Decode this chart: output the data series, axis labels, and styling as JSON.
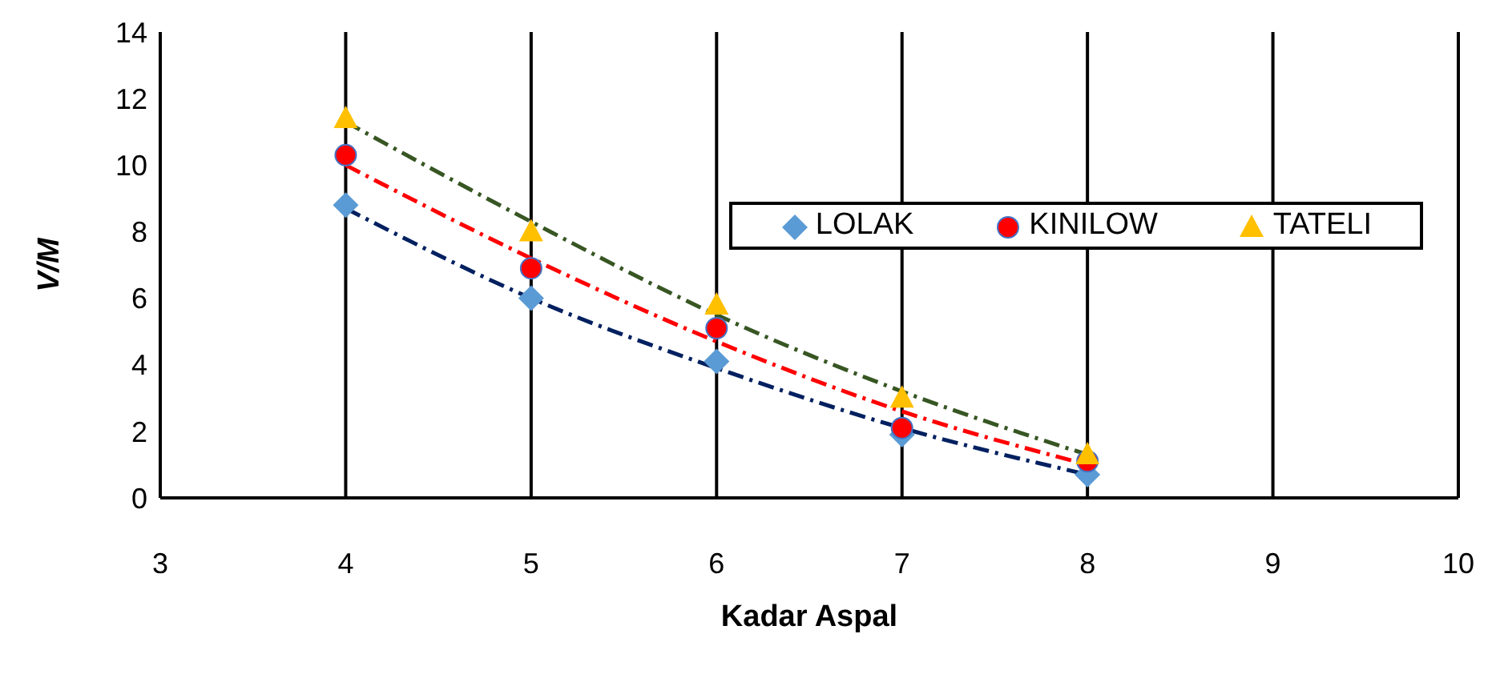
{
  "chart_data": {
    "type": "scatter",
    "xlabel": "Kadar Aspal",
    "ylabel": "V/M",
    "xlim": [
      3,
      10
    ],
    "xticks": [
      3,
      4,
      5,
      6,
      7,
      8,
      9,
      10
    ],
    "ylim": [
      0,
      14
    ],
    "yticks": [
      0,
      2,
      4,
      6,
      8,
      10,
      12,
      14
    ],
    "grid": "x",
    "legend": "top right",
    "series": [
      {
        "name": "LOLAK",
        "color": "#5b9bd5",
        "marker": "diamond",
        "x": [
          4,
          5,
          6,
          7,
          8
        ],
        "values": [
          8.8,
          6.0,
          4.1,
          1.9,
          0.7
        ]
      },
      {
        "name": "KINILOW",
        "color": "#ff0000",
        "marker": "circle",
        "x": [
          4,
          5,
          6,
          7,
          8
        ],
        "values": [
          10.3,
          6.9,
          5.1,
          2.1,
          1.1
        ]
      },
      {
        "name": "TATELI",
        "color": "#ffc000",
        "marker": "triangle",
        "x": [
          4,
          5,
          6,
          7,
          8
        ],
        "values": [
          11.4,
          8.0,
          5.8,
          3.0,
          1.3
        ]
      },
      {
        "type": "line",
        "color": "#002060",
        "line_style": "dashed",
        "marker": "none",
        "x": [
          4,
          5,
          6,
          7,
          8
        ],
        "values": [
          8.7,
          6.0,
          3.9,
          2.1,
          0.7
        ]
      },
      {
        "type": "line",
        "color": "#ff0000",
        "line_style": "dashed",
        "marker": "none",
        "x": [
          4,
          5,
          6,
          7,
          8
        ],
        "values": [
          10.0,
          7.2,
          4.7,
          2.6,
          1.0
        ]
      },
      {
        "type": "line",
        "color": "#375623",
        "line_style": "dashed",
        "marker": "none",
        "x": [
          4,
          5,
          6,
          7,
          8
        ],
        "values": [
          11.3,
          8.3,
          5.5,
          3.2,
          1.3
        ]
      }
    ]
  }
}
